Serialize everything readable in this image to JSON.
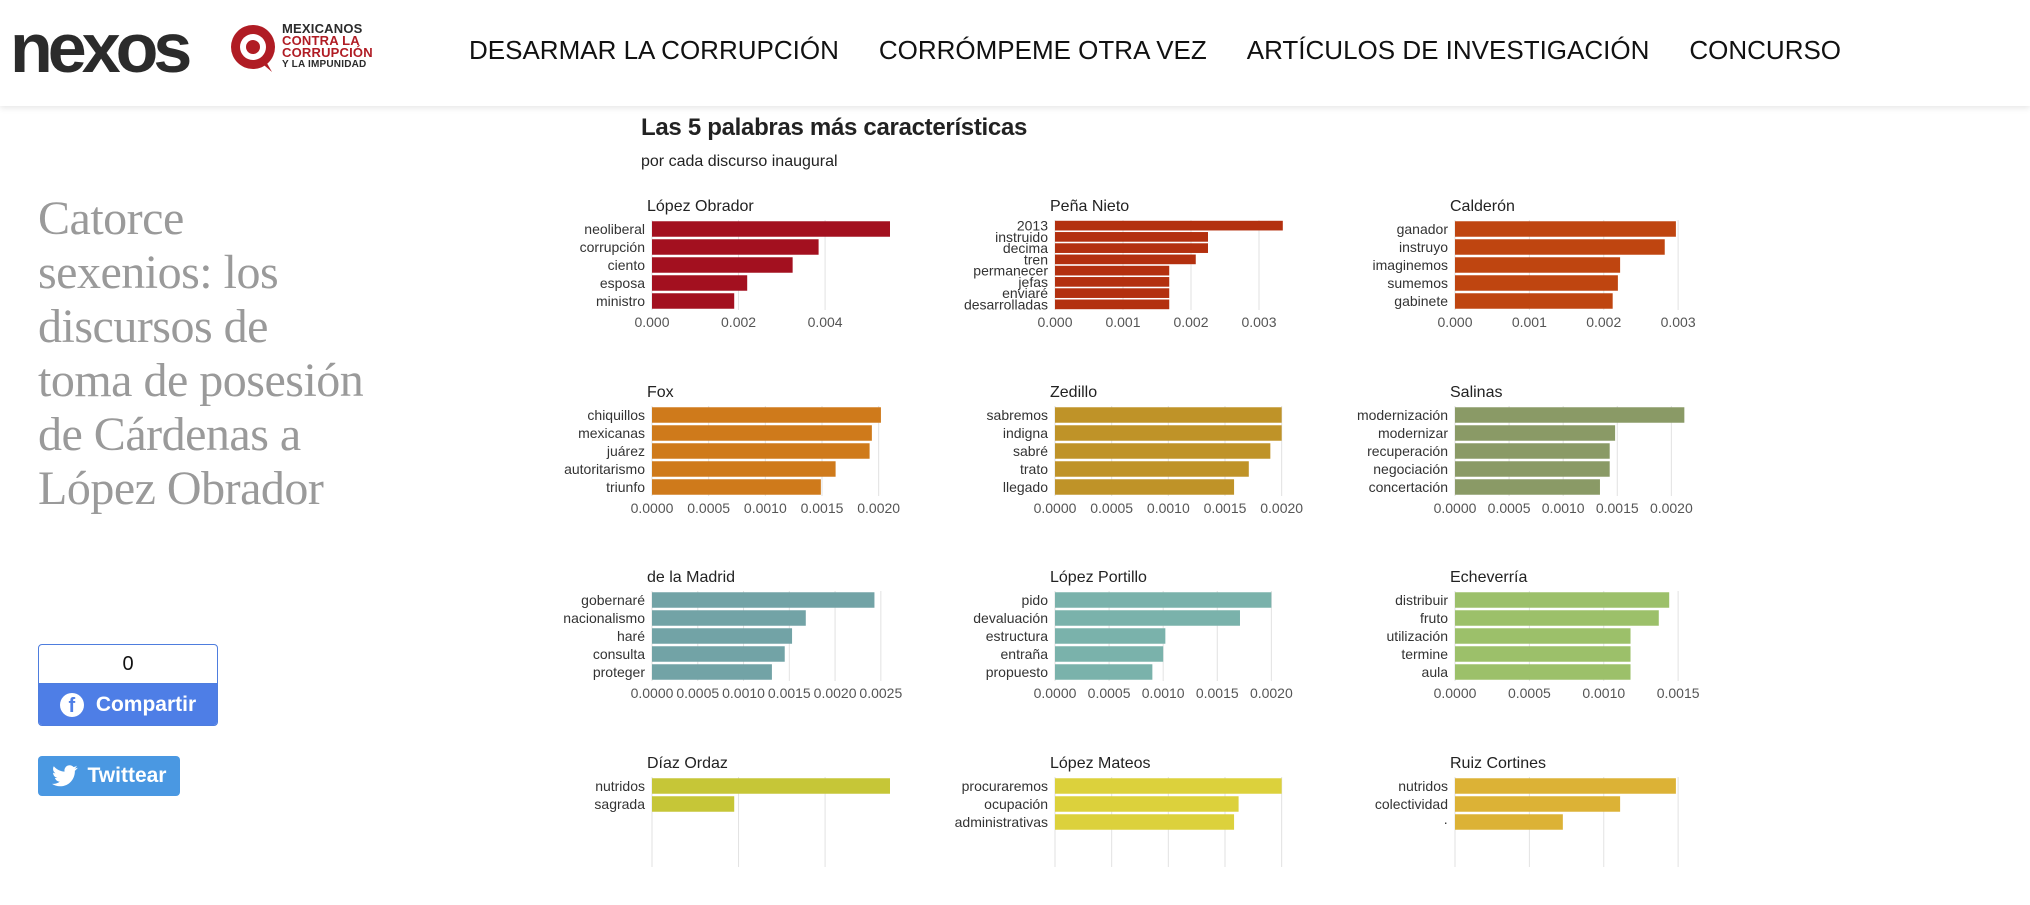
{
  "header": {
    "logo": "nexos",
    "partner_logo": [
      "MEXICANOS",
      "CONTRA LA",
      "CORRUPCIÓN",
      "Y LA IMPUNIDAD"
    ],
    "nav": [
      "DESARMAR LA CORRUPCIÓN",
      "CORRÓMPEME OTRA VEZ",
      "ARTÍCULOS DE INVESTIGACIÓN",
      "CONCURSO"
    ]
  },
  "article": {
    "title": "Catorce sexenios: los discursos de toma de posesión de Cárdenas a López Obrador"
  },
  "share": {
    "count": "0",
    "facebook_label": "Compartir",
    "twitter_label": "Twittear"
  },
  "colors": {
    "brand_red": "#b01c24",
    "facebook": "#4e7ee6",
    "twitter": "#4a98e2"
  },
  "chart_data": {
    "type": "bar",
    "orientation": "horizontal",
    "title": "Las 5 palabras más características",
    "subtitle": "por cada discurso inaugural",
    "grid": true,
    "panels": [
      {
        "name": "López Obrador",
        "color": "#a3101f",
        "xlim": [
          0,
          0.0055
        ],
        "ticks": [
          0,
          0.002,
          0.004
        ],
        "tick_labels": [
          "0.000",
          "0.002",
          "0.004"
        ],
        "categories": [
          "neoliberal",
          "corrupción",
          "ciento",
          "esposa",
          "ministro"
        ],
        "values": [
          0.0055,
          0.00385,
          0.00325,
          0.0022,
          0.0019
        ]
      },
      {
        "name": "Peña Nieto",
        "color": "#b3300f",
        "xlim": [
          0,
          0.0035
        ],
        "ticks": [
          0,
          0.001,
          0.002,
          0.003
        ],
        "tick_labels": [
          "0.000",
          "0.001",
          "0.002",
          "0.003"
        ],
        "categories": [
          "2013",
          "instruido",
          "decima",
          "tren",
          "permanecer",
          "jefas",
          "enviaré",
          "desarrolladas"
        ],
        "values": [
          0.00335,
          0.00225,
          0.00225,
          0.00207,
          0.00168,
          0.00168,
          0.00168,
          0.00168
        ]
      },
      {
        "name": "Calderón",
        "color": "#bf4510",
        "xlim": [
          0,
          0.0032
        ],
        "ticks": [
          0,
          0.001,
          0.002,
          0.003
        ],
        "tick_labels": [
          "0.000",
          "0.001",
          "0.002",
          "0.003"
        ],
        "categories": [
          "ganador",
          "instruyo",
          "imaginemos",
          "sumemos",
          "gabinete"
        ],
        "values": [
          0.00297,
          0.00282,
          0.00222,
          0.00219,
          0.00212
        ]
      },
      {
        "name": "Fox",
        "color": "#cf7a1b",
        "xlim": [
          0,
          0.0021
        ],
        "ticks": [
          0,
          0.0005,
          0.001,
          0.0015,
          0.002
        ],
        "tick_labels": [
          "0.0000",
          "0.0005",
          "0.0010",
          "0.0015",
          "0.0020"
        ],
        "categories": [
          "chiquillos",
          "mexicanas",
          "juárez",
          "autoritarismo",
          "triunfo"
        ],
        "values": [
          0.00202,
          0.00194,
          0.00192,
          0.00162,
          0.00149
        ]
      },
      {
        "name": "Zedillo",
        "color": "#bf9328",
        "xlim": [
          0,
          0.0021
        ],
        "ticks": [
          0,
          0.0005,
          0.001,
          0.0015,
          0.002
        ],
        "tick_labels": [
          "0.0000",
          "0.0005",
          "0.0010",
          "0.0015",
          "0.0020"
        ],
        "categories": [
          "sabremos",
          "indigna",
          "sabré",
          "trato",
          "llegado"
        ],
        "values": [
          0.002,
          0.002,
          0.0019,
          0.00171,
          0.00158
        ]
      },
      {
        "name": "Salinas",
        "color": "#8a9a66",
        "xlim": [
          0,
          0.0022
        ],
        "ticks": [
          0,
          0.0005,
          0.001,
          0.0015,
          0.002
        ],
        "tick_labels": [
          "0.0000",
          "0.0005",
          "0.0010",
          "0.0015",
          "0.0020"
        ],
        "categories": [
          "modernización",
          "modernizar",
          "recuperación",
          "negociación",
          "concertación"
        ],
        "values": [
          0.00212,
          0.00148,
          0.00143,
          0.00143,
          0.00134
        ]
      },
      {
        "name": "de la Madrid",
        "color": "#72a3a6",
        "xlim": [
          0,
          0.0026
        ],
        "ticks": [
          0,
          0.0005,
          0.001,
          0.0015,
          0.002,
          0.0025
        ],
        "tick_labels": [
          "0.0000",
          "0.0005",
          "0.0010",
          "0.0015",
          "0.0020",
          "0.0025"
        ],
        "categories": [
          "gobernaré",
          "nacionalismo",
          "haré",
          "consulta",
          "proteger"
        ],
        "values": [
          0.00243,
          0.00168,
          0.00153,
          0.00145,
          0.00131
        ]
      },
      {
        "name": "López Portillo",
        "color": "#7ab2ab",
        "xlim": [
          0,
          0.0022
        ],
        "ticks": [
          0,
          0.0005,
          0.001,
          0.0015,
          0.002
        ],
        "tick_labels": [
          "0.0000",
          "0.0005",
          "0.0010",
          "0.0015",
          "0.0020"
        ],
        "categories": [
          "pido",
          "devaluación",
          "estructura",
          "entraña",
          "propuesto"
        ],
        "values": [
          0.002,
          0.00171,
          0.00102,
          0.001,
          0.0009
        ]
      },
      {
        "name": "Echeverría",
        "color": "#9cc06a",
        "xlim": [
          0,
          0.0016
        ],
        "ticks": [
          0,
          0.0005,
          0.001,
          0.0015
        ],
        "tick_labels": [
          "0.0000",
          "0.0005",
          "0.0010",
          "0.0015"
        ],
        "categories": [
          "distribuir",
          "fruto",
          "utilización",
          "termine",
          "aula"
        ],
        "values": [
          0.00144,
          0.00137,
          0.00118,
          0.00118,
          0.00118
        ]
      },
      {
        "name": "Díaz Ordaz",
        "color": "#c6c637",
        "xlim": [
          0,
          0.0055
        ],
        "ticks": [
          0,
          0.002,
          0.004
        ],
        "tick_labels": [
          "",
          "",
          ""
        ],
        "categories": [
          "nutridos",
          "sagrada"
        ],
        "values": [
          0.0055,
          0.0019
        ]
      },
      {
        "name": "López Mateos",
        "color": "#dcd13c",
        "xlim": [
          0,
          0.0021
        ],
        "ticks": [
          0,
          0.0005,
          0.001,
          0.0015,
          0.002
        ],
        "tick_labels": [
          "",
          "",
          "",
          "",
          ""
        ],
        "categories": [
          "procuraremos",
          "ocupación",
          "administrativas"
        ],
        "values": [
          0.002,
          0.00162,
          0.00158
        ]
      },
      {
        "name": "Ruiz Cortines",
        "color": "#dcb236",
        "xlim": [
          0,
          0.0032
        ],
        "ticks": [
          0,
          0.001,
          0.002,
          0.003
        ],
        "tick_labels": [
          "",
          "",
          "",
          ""
        ],
        "categories": [
          "nutridos",
          "colectividad",
          "·"
        ],
        "values": [
          0.00297,
          0.00222,
          0.00145
        ]
      }
    ]
  }
}
